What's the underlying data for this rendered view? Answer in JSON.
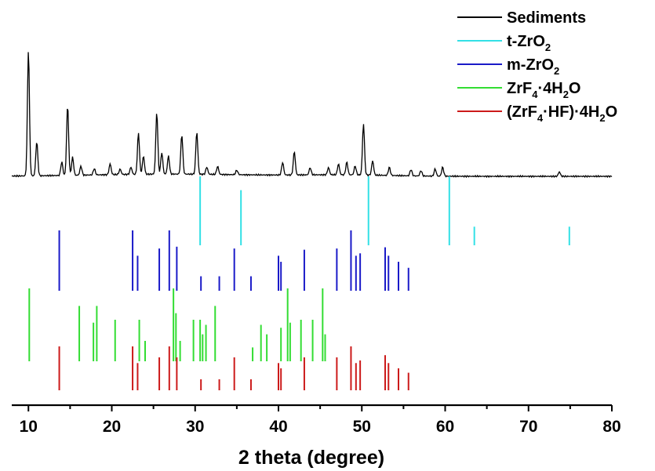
{
  "chart_data": {
    "type": "line",
    "xlabel": "2 theta (degree)",
    "ylabel": "",
    "xlim": [
      8,
      80
    ],
    "xticks": [
      "10",
      "20",
      "30",
      "40",
      "50",
      "60",
      "70",
      "80"
    ],
    "grid": false,
    "legend_position": "top-right",
    "legend": [
      {
        "key": "sed",
        "text": "Sediments",
        "color": "#000000"
      },
      {
        "key": "tzr",
        "text": "t-ZrO",
        "sub": "2",
        "color": "#33e0e6"
      },
      {
        "key": "mzr",
        "text": "m-ZrO",
        "sub": "2",
        "color": "#1a1ac8"
      },
      {
        "key": "zrf",
        "text": "ZrF",
        "sub": "4",
        "tail": "·4H",
        "sub2": "2",
        "tail2": "O",
        "color": "#33dd33"
      },
      {
        "key": "hf",
        "text": "(ZrF",
        "sub": "4",
        "tail": "·HF)·4H",
        "sub2": "2",
        "tail2": "O",
        "color": "#cc1a1a"
      }
    ],
    "series": [
      {
        "name": "Sediments",
        "color": "#000000",
        "peaks": [
          [
            10.0,
            140
          ],
          [
            11.0,
            38
          ],
          [
            14.0,
            15
          ],
          [
            14.7,
            78
          ],
          [
            15.3,
            20
          ],
          [
            16.3,
            10
          ],
          [
            17.9,
            7
          ],
          [
            19.8,
            12
          ],
          [
            21.0,
            6
          ],
          [
            22.3,
            8
          ],
          [
            23.2,
            46
          ],
          [
            23.8,
            20
          ],
          [
            25.4,
            69
          ],
          [
            26.0,
            24
          ],
          [
            26.8,
            20
          ],
          [
            28.4,
            44
          ],
          [
            30.2,
            47
          ],
          [
            31.4,
            8
          ],
          [
            32.7,
            9
          ],
          [
            35.0,
            5
          ],
          [
            40.5,
            14
          ],
          [
            41.9,
            26
          ],
          [
            43.8,
            8
          ],
          [
            46.0,
            8
          ],
          [
            47.2,
            12
          ],
          [
            48.2,
            14
          ],
          [
            49.2,
            10
          ],
          [
            50.2,
            57
          ],
          [
            51.3,
            16
          ],
          [
            53.3,
            9
          ],
          [
            55.9,
            7
          ],
          [
            57.1,
            6
          ],
          [
            58.8,
            8
          ],
          [
            59.7,
            10
          ],
          [
            73.7,
            5
          ]
        ]
      },
      {
        "name": "t-ZrO2",
        "color": "#33e0e6",
        "lines": [
          [
            30.6,
            1.0
          ],
          [
            35.5,
            0.8
          ],
          [
            50.8,
            1.0
          ],
          [
            60.5,
            1.0
          ],
          [
            63.5,
            0.27
          ],
          [
            74.9,
            0.27
          ]
        ]
      },
      {
        "name": "m-ZrO2",
        "color": "#1a1ac8",
        "lines": [
          [
            13.7,
            1.0
          ],
          [
            22.5,
            1.0
          ],
          [
            23.1,
            0.58
          ],
          [
            25.7,
            0.7
          ],
          [
            26.9,
            1.0
          ],
          [
            27.8,
            0.73
          ],
          [
            30.7,
            0.24
          ],
          [
            32.9,
            0.24
          ],
          [
            34.7,
            0.7
          ],
          [
            36.7,
            0.24
          ],
          [
            40.0,
            0.58
          ],
          [
            40.3,
            0.48
          ],
          [
            43.1,
            0.68
          ],
          [
            47.0,
            0.7
          ],
          [
            48.7,
            1.0
          ],
          [
            49.3,
            0.58
          ],
          [
            49.8,
            0.62
          ],
          [
            52.8,
            0.72
          ],
          [
            53.2,
            0.58
          ],
          [
            54.4,
            0.48
          ],
          [
            55.6,
            0.38
          ]
        ]
      },
      {
        "name": "ZrF4·4H2O",
        "color": "#33dd33",
        "lines": [
          [
            10.1,
            1.0
          ],
          [
            16.1,
            0.76
          ],
          [
            17.8,
            0.53
          ],
          [
            18.2,
            0.76
          ],
          [
            20.4,
            0.57
          ],
          [
            23.3,
            0.57
          ],
          [
            24.0,
            0.28
          ],
          [
            27.4,
            1.0
          ],
          [
            27.7,
            0.66
          ],
          [
            28.2,
            0.28
          ],
          [
            29.8,
            0.57
          ],
          [
            30.6,
            0.57
          ],
          [
            30.9,
            0.37
          ],
          [
            31.3,
            0.5
          ],
          [
            32.4,
            0.76
          ],
          [
            36.9,
            0.19
          ],
          [
            37.9,
            0.5
          ],
          [
            38.6,
            0.37
          ],
          [
            40.3,
            0.46
          ],
          [
            41.1,
            1.0
          ],
          [
            41.4,
            0.53
          ],
          [
            42.7,
            0.57
          ],
          [
            44.1,
            0.57
          ],
          [
            45.3,
            1.0
          ],
          [
            45.6,
            0.37
          ]
        ]
      },
      {
        "name": "(ZrF4·HF)·4H2O",
        "color": "#cc1a1a",
        "lines": [
          [
            13.7,
            1.0
          ],
          [
            22.5,
            1.0
          ],
          [
            23.1,
            0.62
          ],
          [
            25.7,
            0.75
          ],
          [
            26.9,
            1.0
          ],
          [
            27.8,
            0.75
          ],
          [
            30.7,
            0.25
          ],
          [
            32.9,
            0.25
          ],
          [
            34.7,
            0.75
          ],
          [
            36.7,
            0.25
          ],
          [
            40.0,
            0.62
          ],
          [
            40.3,
            0.5
          ],
          [
            43.1,
            0.75
          ],
          [
            47.0,
            0.75
          ],
          [
            48.7,
            1.0
          ],
          [
            49.3,
            0.62
          ],
          [
            49.8,
            0.68
          ],
          [
            52.8,
            0.8
          ],
          [
            53.2,
            0.62
          ],
          [
            54.4,
            0.5
          ],
          [
            55.6,
            0.4
          ]
        ]
      }
    ]
  }
}
